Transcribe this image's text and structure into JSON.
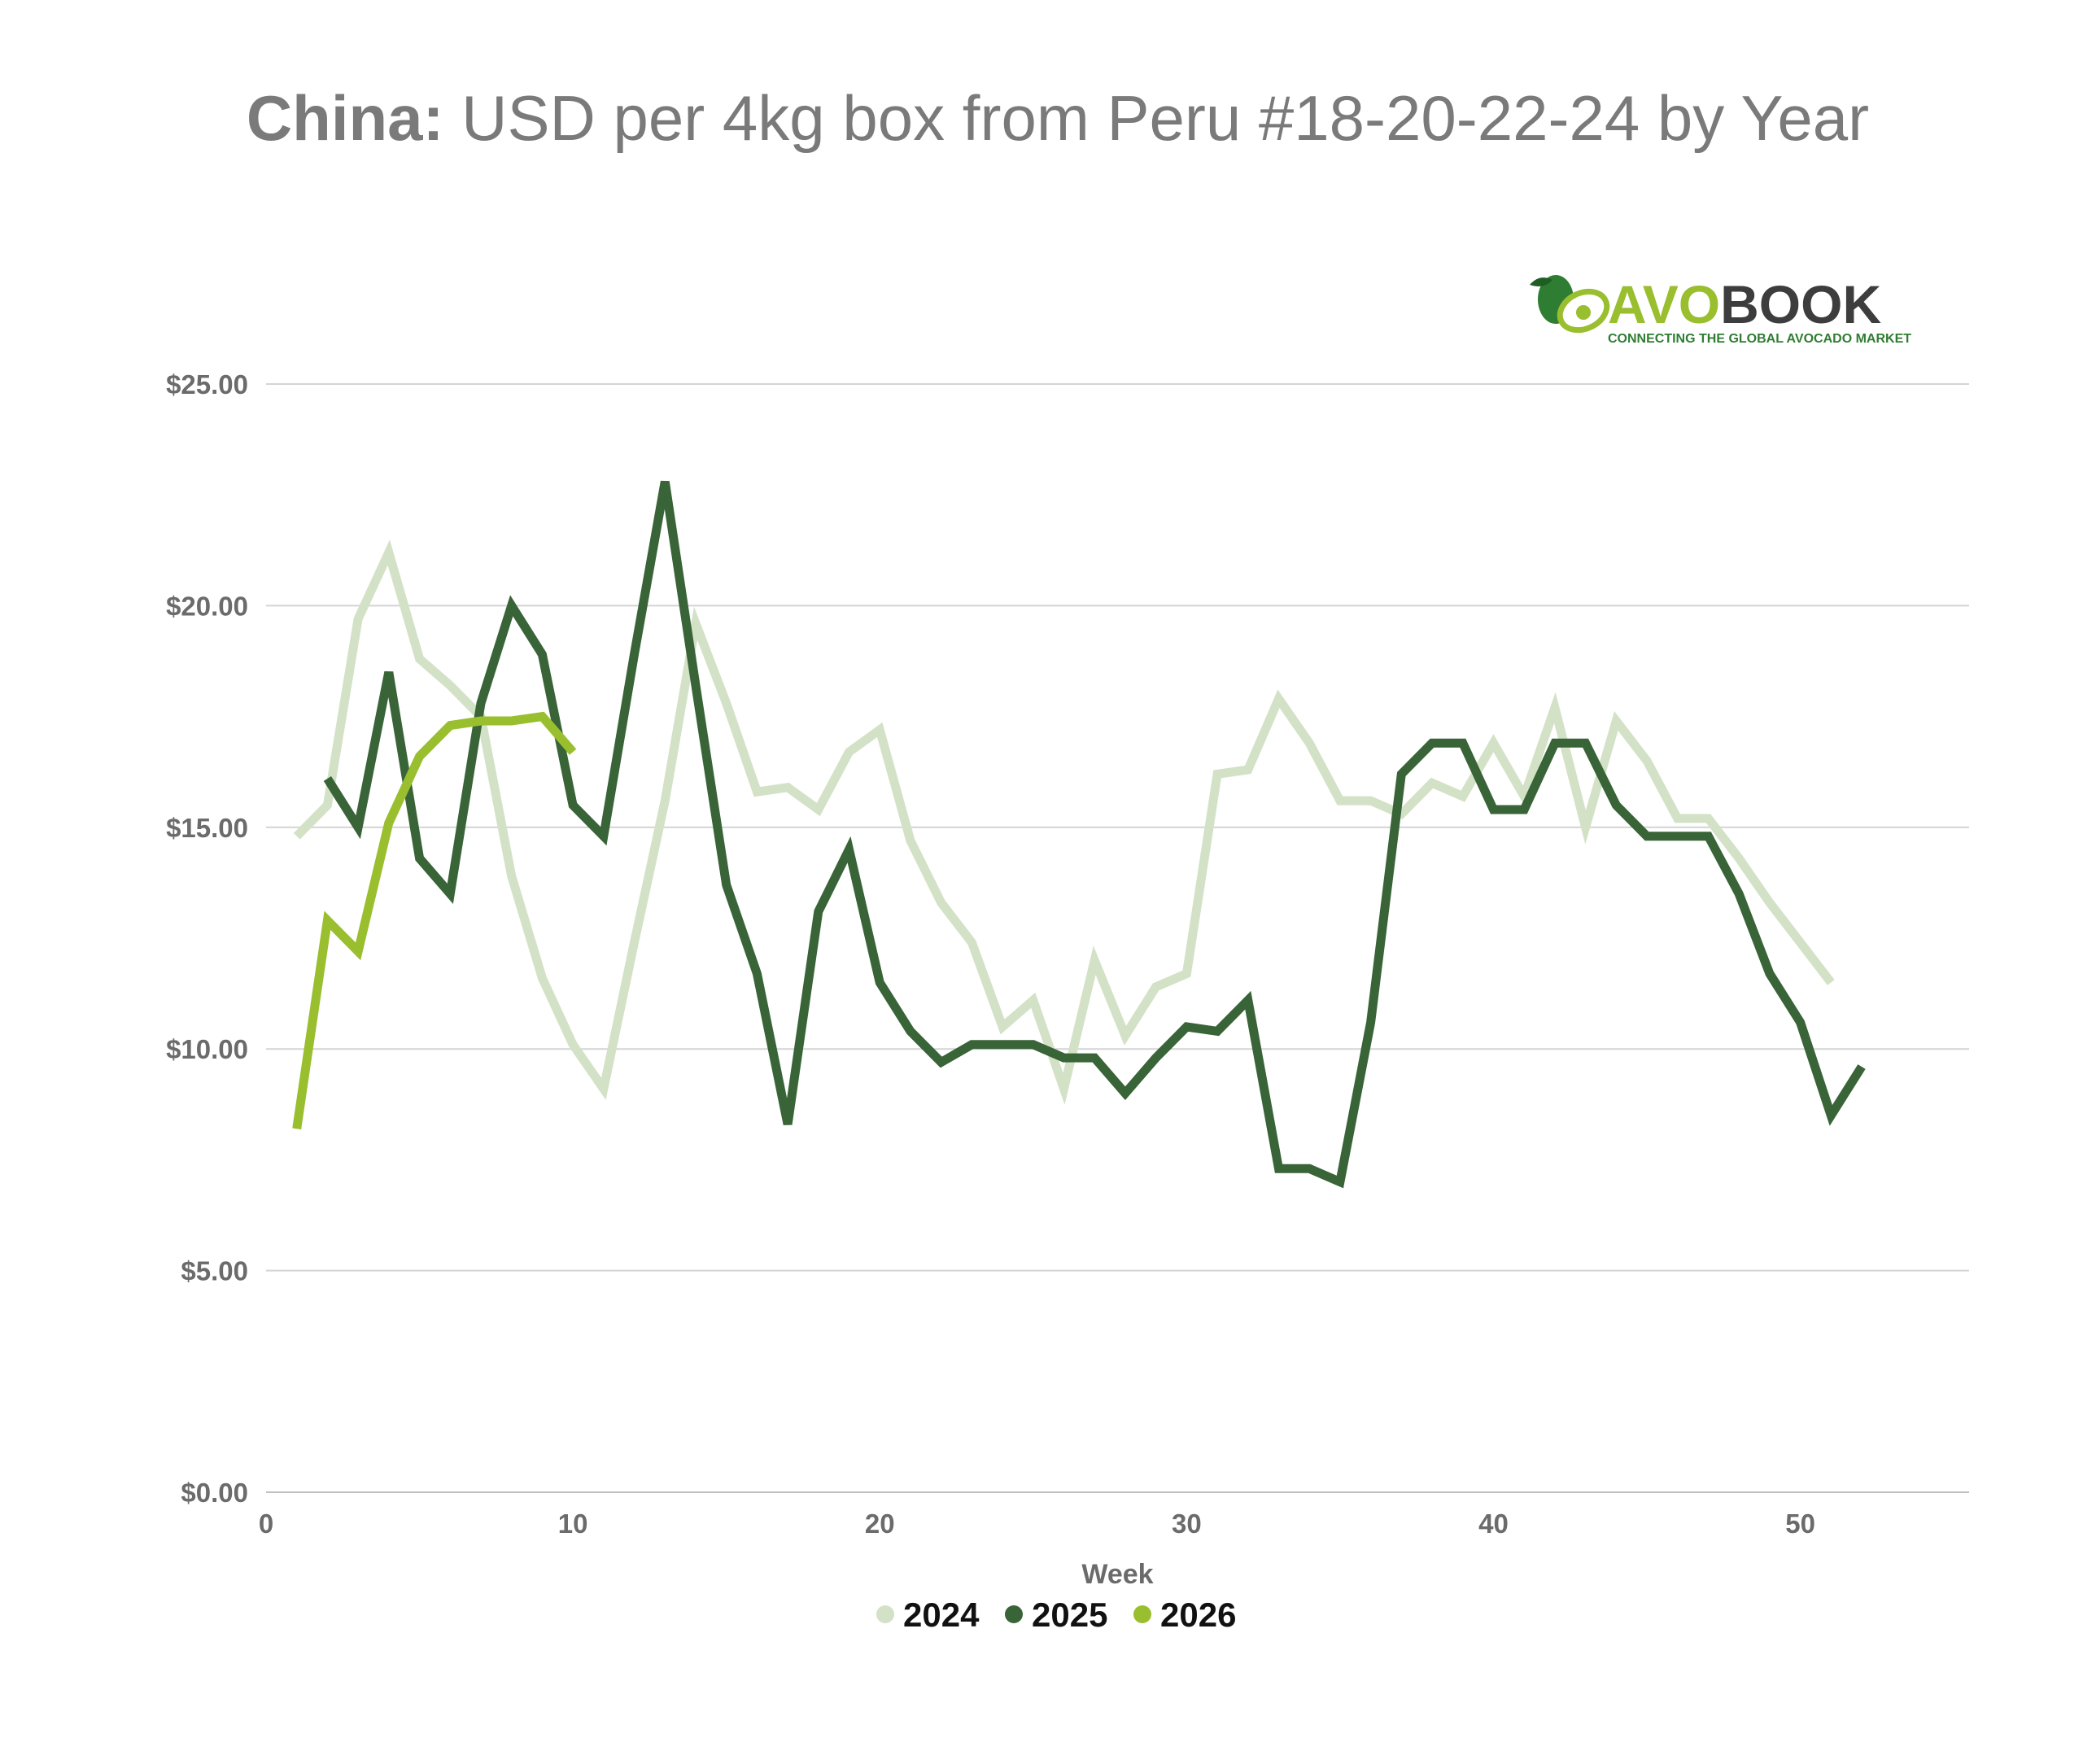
{
  "chart_data": {
    "type": "line",
    "title_bold": "China:",
    "title_rest": " USD per 4kg box from Peru #18-20-22-24 by Year",
    "xlabel": "Week",
    "ylabel": "",
    "xlim": [
      0,
      55.5
    ],
    "ylim": [
      0,
      25
    ],
    "x_ticks": [
      0,
      10,
      20,
      30,
      40,
      50
    ],
    "x_tick_labels": [
      "0",
      "10",
      "20",
      "30",
      "40",
      "50"
    ],
    "y_ticks": [
      0,
      5,
      10,
      15,
      20,
      25
    ],
    "y_tick_labels": [
      "$0.00",
      "$5.00",
      "$10.00",
      "$15.00",
      "$20.00",
      "$25.00"
    ],
    "grid": true,
    "legend_position": "bottom",
    "series": [
      {
        "name": "2024",
        "color": "#d3e2c6",
        "x": [
          1,
          2,
          3,
          4,
          5,
          6,
          7,
          8,
          9,
          10,
          11,
          12,
          13,
          14,
          15,
          16,
          17,
          18,
          19,
          20,
          21,
          22,
          23,
          24,
          25,
          26,
          27,
          28,
          29,
          30,
          31,
          32,
          33,
          34,
          35,
          36,
          37,
          38,
          39,
          40,
          41,
          42,
          43,
          44,
          45,
          46,
          47,
          48,
          49,
          50,
          51
        ],
        "y": [
          14.8,
          15.5,
          19.7,
          21.2,
          18.8,
          18.2,
          17.5,
          13.9,
          11.6,
          10.1,
          9.1,
          12.4,
          15.6,
          19.6,
          17.8,
          15.8,
          15.9,
          15.4,
          16.7,
          17.2,
          14.7,
          13.3,
          12.4,
          10.5,
          11.1,
          9.1,
          12.0,
          10.3,
          11.4,
          11.7,
          16.2,
          16.3,
          17.9,
          16.9,
          15.6,
          15.6,
          15.3,
          16.0,
          15.7,
          16.9,
          15.7,
          17.7,
          15.0,
          17.4,
          16.5,
          15.2,
          15.2,
          14.3,
          13.3,
          12.4,
          11.5
        ]
      },
      {
        "name": "2025",
        "color": "#386437",
        "x": [
          2,
          3,
          4,
          5,
          6,
          7,
          8,
          9,
          10,
          11,
          12,
          13,
          14,
          15,
          16,
          17,
          18,
          19,
          20,
          21,
          22,
          23,
          24,
          25,
          26,
          27,
          28,
          29,
          30,
          31,
          32,
          33,
          34,
          35,
          36,
          37,
          38,
          39,
          40,
          41,
          42,
          43,
          44,
          45,
          46,
          47,
          48,
          49,
          50,
          51,
          52
        ],
        "y": [
          16.1,
          15.0,
          18.5,
          14.3,
          13.5,
          17.8,
          20.0,
          18.9,
          15.5,
          14.8,
          18.9,
          22.8,
          18.2,
          13.7,
          11.7,
          8.3,
          13.1,
          14.5,
          11.5,
          10.4,
          9.7,
          10.1,
          10.1,
          10.1,
          9.8,
          9.8,
          9.0,
          9.8,
          10.5,
          10.4,
          11.1,
          7.3,
          7.3,
          7.0,
          10.6,
          16.2,
          16.9,
          16.9,
          15.4,
          15.4,
          16.9,
          16.9,
          15.5,
          14.8,
          14.8,
          14.8,
          13.5,
          11.7,
          10.6,
          8.5,
          9.6
        ]
      },
      {
        "name": "2026",
        "color": "#99be2e",
        "x": [
          1,
          2,
          3,
          4,
          5,
          6,
          7,
          8,
          9,
          10
        ],
        "y": [
          8.2,
          12.9,
          12.2,
          15.1,
          16.6,
          17.3,
          17.4,
          17.4,
          17.5,
          16.7
        ]
      }
    ]
  },
  "logo": {
    "brand_part1": "AVO",
    "brand_part2": "BOOK",
    "tagline": "CONNECTING THE GLOBAL AVOCADO MARKET",
    "color_avo": "#99be2e",
    "color_book": "#3d3d3d",
    "color_tagline": "#2f7d32"
  },
  "colors": {
    "title": "#7a7a7a",
    "tick": "#6b6b6b",
    "grid": "#d4d4d4"
  }
}
